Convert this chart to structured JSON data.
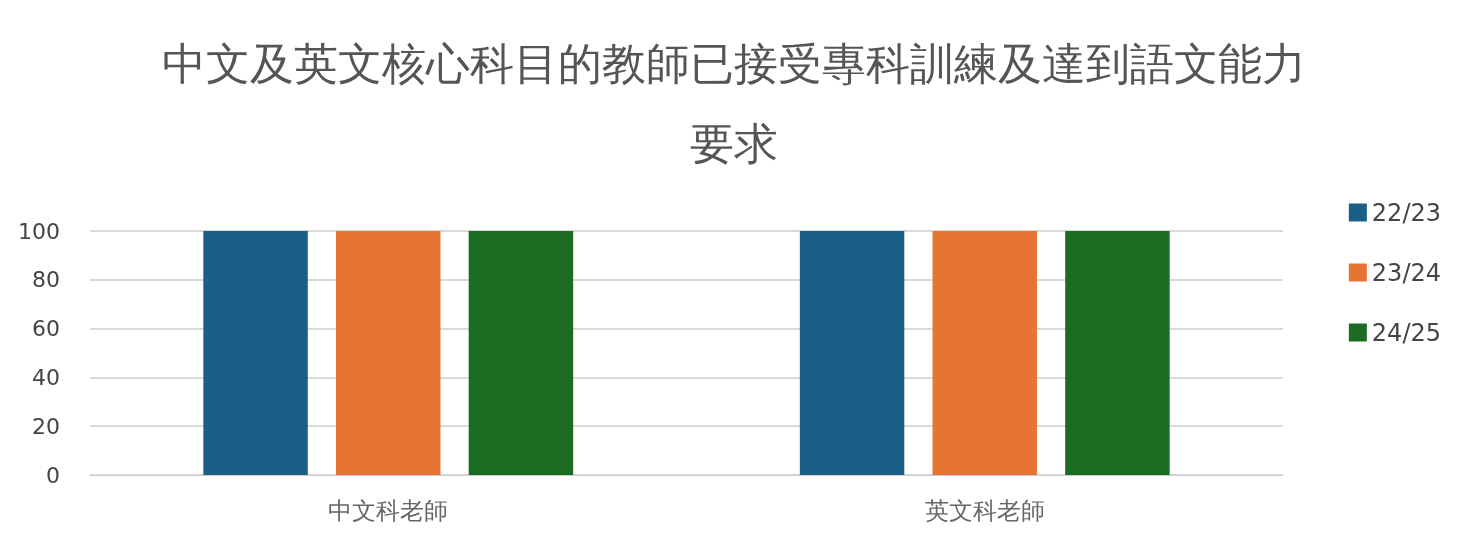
{
  "chart_data": {
    "type": "bar",
    "title": "中文及英文核心科目的教師已接受專科訓練及達到語文能力要求",
    "categories": [
      "中文科老師",
      "英文科老師"
    ],
    "series": [
      {
        "name": "22/23",
        "color": "#1a5f86",
        "values": [
          100,
          100
        ]
      },
      {
        "name": "23/24",
        "color": "#e87433",
        "values": [
          100,
          100
        ]
      },
      {
        "name": "24/25",
        "color": "#1b6b23",
        "values": [
          100,
          100
        ]
      }
    ],
    "ylim": [
      0,
      100
    ],
    "yticks": [
      0,
      20,
      40,
      60,
      80,
      100
    ],
    "grid": "y",
    "legend": "right"
  }
}
